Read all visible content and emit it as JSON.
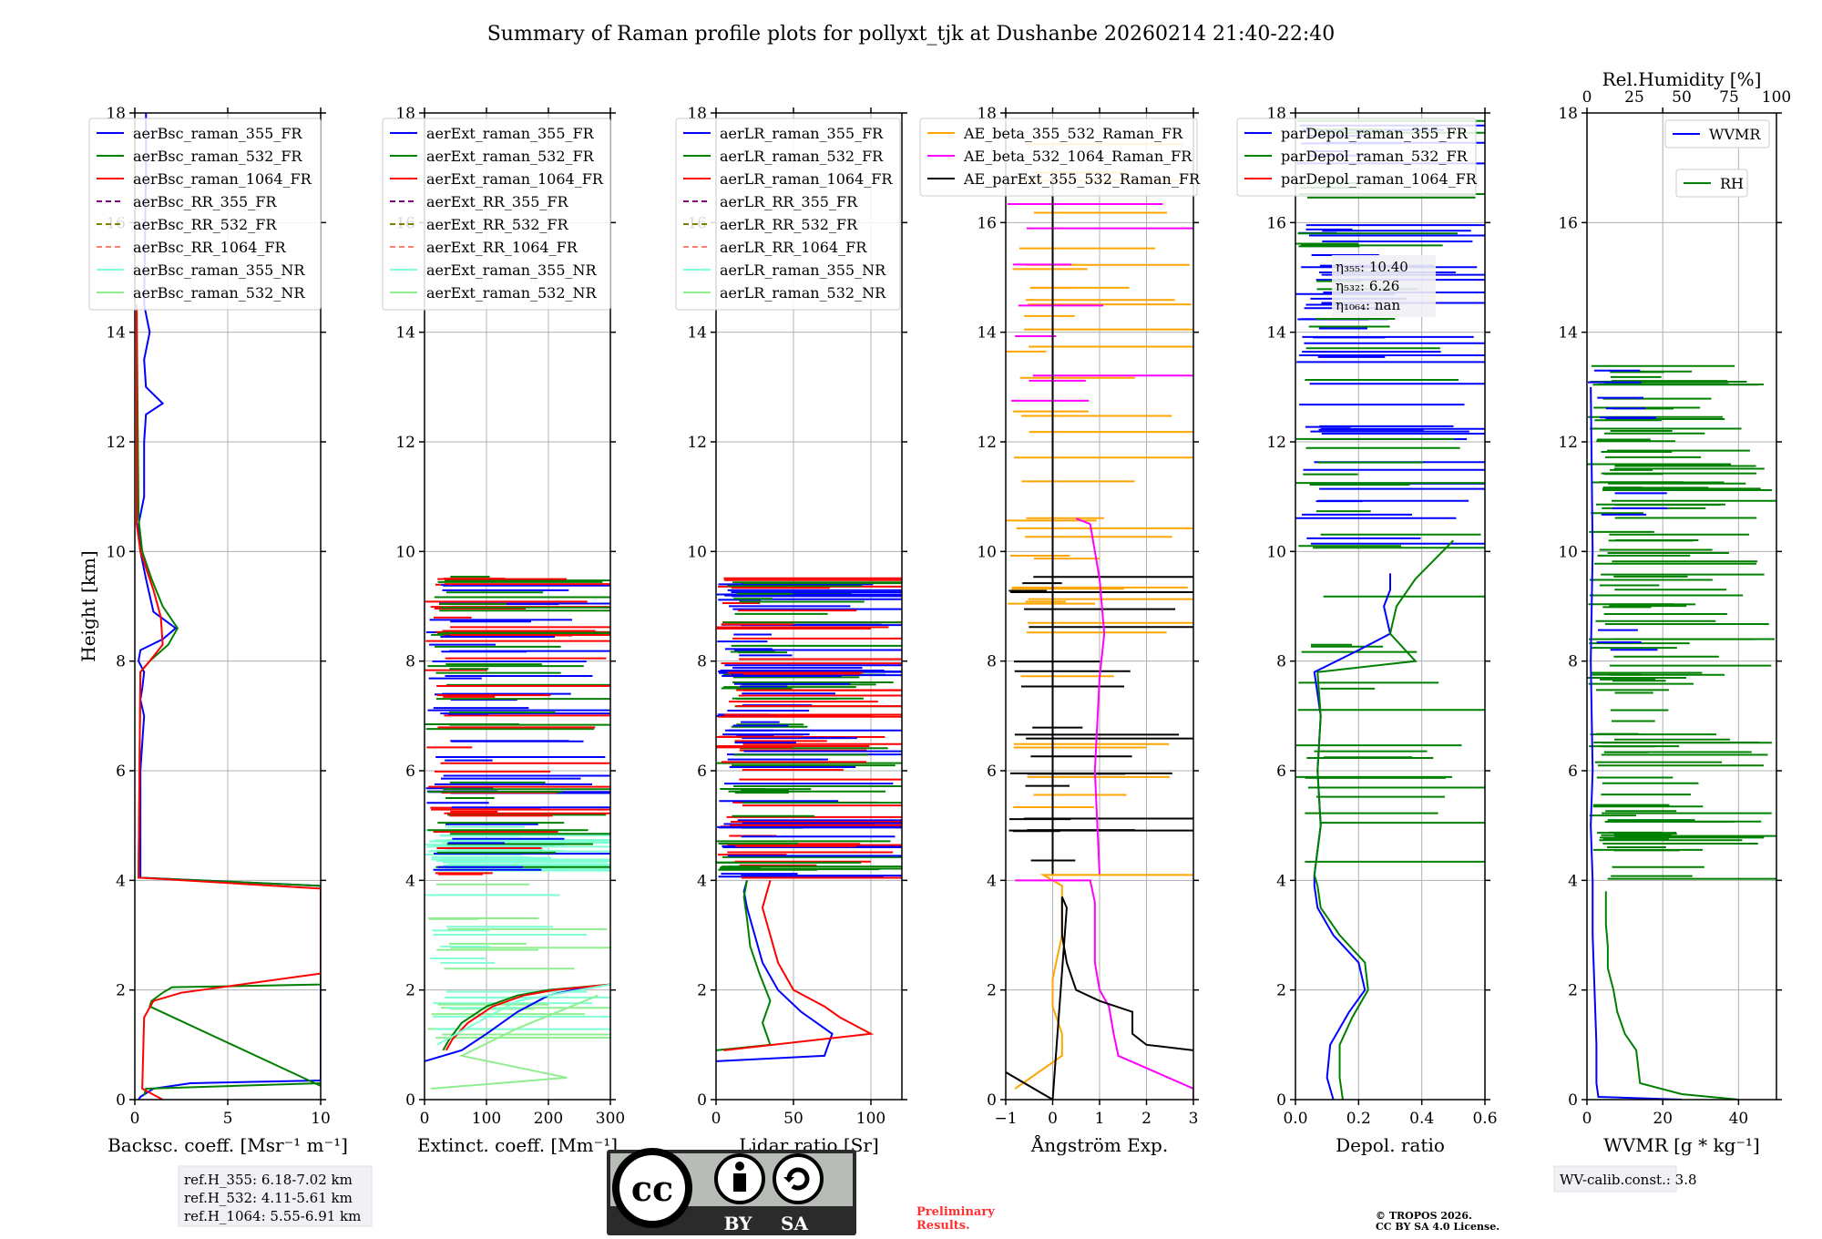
{
  "title": "Summary of Raman profile plots for pollyxt_tjk at Dushanbe 20260214 21:40-22:40",
  "colors": {
    "blue": "#0000ff",
    "green": "#008000",
    "red": "#ff0000",
    "purple": "#800080",
    "olive": "#808000",
    "salmon": "#fa8072",
    "cyan": "#7fffd4",
    "lightgreen": "#90ee90",
    "orange": "#ffa500",
    "magenta": "#ff00ff",
    "black": "#000000",
    "grid": "#b0b0b0"
  },
  "chart_data": [
    {
      "type": "line",
      "id": "bsc",
      "xlabel": "Backsc. coeff. [Msr⁻¹ m⁻¹]",
      "ylabel": "Height [km]",
      "xlim": [
        0,
        10
      ],
      "ylim": [
        0,
        18
      ],
      "xticks": [
        0,
        5,
        10
      ],
      "xticklabels": [
        "0",
        "5",
        "10"
      ],
      "yticks": [
        0,
        2,
        4,
        6,
        8,
        10,
        12,
        14,
        16,
        18
      ],
      "grid": true,
      "legend": "top-left",
      "series": [
        {
          "name": "aerBsc_raman_355_FR",
          "color": "blue",
          "style": "solid",
          "x": [
            0.2,
            0.3,
            1.0,
            3.0,
            10.0,
            10.0,
            0.3,
            0.3,
            0.5,
            0.3,
            0.4,
            0.5,
            0.2,
            0.3,
            1.5,
            2.2,
            1.0,
            0.6,
            0.3,
            0.2,
            0.5,
            0.5,
            0.6,
            1.5,
            0.6,
            0.5,
            0.8,
            0.5,
            0.6,
            0.6
          ],
          "y": [
            0.0,
            0.05,
            0.2,
            0.3,
            0.35,
            3.9,
            4.05,
            6.0,
            7.0,
            7.3,
            7.5,
            7.8,
            8.0,
            8.2,
            8.4,
            8.6,
            8.9,
            9.5,
            10.0,
            10.5,
            11.0,
            12.0,
            12.5,
            12.7,
            13.0,
            13.5,
            14.0,
            14.5,
            17.0,
            18.0
          ]
        },
        {
          "name": "aerBsc_raman_532_FR",
          "color": "green",
          "style": "solid",
          "x": [
            0.5,
            0.6,
            10.0,
            10.0,
            0.8,
            0.9,
            1.5,
            2.0,
            10.0,
            10.0,
            0.2,
            0.3,
            0.8,
            1.8,
            2.3,
            1.5,
            0.9,
            0.4,
            0.2,
            0.1
          ],
          "y": [
            0.08,
            0.2,
            0.3,
            0.25,
            1.7,
            1.8,
            1.95,
            2.05,
            2.1,
            3.9,
            4.05,
            7.8,
            8.0,
            8.3,
            8.6,
            9.0,
            9.5,
            10.0,
            10.6,
            14.5
          ]
        },
        {
          "name": "aerBsc_raman_1064_FR",
          "color": "red",
          "style": "solid",
          "x": [
            1.5,
            0.4,
            0.5,
            1.0,
            2.5,
            10.0,
            10.0,
            0.2,
            0.3,
            0.8,
            1.5,
            1.4,
            1.0,
            0.3,
            0.1,
            0.1
          ],
          "y": [
            0.0,
            0.2,
            1.5,
            1.8,
            1.95,
            2.3,
            3.85,
            4.05,
            7.8,
            8.0,
            8.3,
            8.8,
            9.3,
            10.0,
            10.5,
            14.5
          ]
        },
        {
          "name": "aerBsc_RR_355_FR",
          "color": "purple",
          "style": "dashed",
          "x": [],
          "y": []
        },
        {
          "name": "aerBsc_RR_532_FR",
          "color": "olive",
          "style": "dashed",
          "x": [],
          "y": []
        },
        {
          "name": "aerBsc_RR_1064_FR",
          "color": "salmon",
          "style": "dashed",
          "x": [],
          "y": []
        },
        {
          "name": "aerBsc_raman_355_NR",
          "color": "cyan",
          "style": "solid",
          "x": [],
          "y": []
        },
        {
          "name": "aerBsc_raman_532_NR",
          "color": "lightgreen",
          "style": "solid",
          "x": [],
          "y": []
        }
      ]
    },
    {
      "type": "line",
      "id": "ext",
      "xlabel": "Extinct. coeff. [Mm⁻¹]",
      "xlim": [
        0,
        300
      ],
      "ylim": [
        0,
        18
      ],
      "xticks": [
        0,
        100,
        200,
        300
      ],
      "xticklabels": [
        "0",
        "100",
        "200",
        "300"
      ],
      "yticks": [
        0,
        2,
        4,
        6,
        8,
        10,
        12,
        14,
        16,
        18
      ],
      "grid": true,
      "legend": "top-left",
      "noise_band": {
        "from_km": 4.1,
        "to_km": 9.6,
        "note": "noisy horizontal spikes"
      },
      "series": [
        {
          "name": "aerExt_raman_355_FR",
          "color": "blue",
          "style": "solid",
          "x": [
            0,
            60,
            100,
            150,
            200,
            260,
            300
          ],
          "y": [
            0.7,
            0.9,
            1.2,
            1.6,
            1.9,
            2.05,
            2.1
          ]
        },
        {
          "name": "aerExt_raman_532_FR",
          "color": "green",
          "style": "solid",
          "x": [
            30,
            40,
            60,
            100,
            150,
            200,
            300
          ],
          "y": [
            0.9,
            1.1,
            1.4,
            1.7,
            1.9,
            2.0,
            2.1
          ]
        },
        {
          "name": "aerExt_raman_1064_FR",
          "color": "red",
          "style": "solid",
          "x": [
            35,
            45,
            70,
            110,
            160,
            210,
            300
          ],
          "y": [
            0.9,
            1.1,
            1.4,
            1.7,
            1.9,
            2.0,
            2.1
          ]
        },
        {
          "name": "aerExt_RR_355_FR",
          "color": "purple",
          "style": "dashed",
          "x": [],
          "y": []
        },
        {
          "name": "aerExt_RR_532_FR",
          "color": "olive",
          "style": "dashed",
          "x": [],
          "y": []
        },
        {
          "name": "aerExt_RR_1064_FR",
          "color": "salmon",
          "style": "dashed",
          "x": [],
          "y": []
        },
        {
          "name": "aerExt_raman_355_NR",
          "color": "cyan",
          "style": "solid",
          "x": [
            20,
            100,
            150,
            250,
            300
          ],
          "y": [
            1.0,
            1.5,
            1.8,
            2.0,
            2.1
          ]
        },
        {
          "name": "aerExt_raman_532_NR",
          "color": "lightgreen",
          "style": "solid",
          "x": [
            10,
            120,
            230,
            60,
            150,
            280
          ],
          "y": [
            0.2,
            0.3,
            0.4,
            0.8,
            1.3,
            1.9
          ]
        }
      ]
    },
    {
      "type": "line",
      "id": "lr",
      "xlabel": "Lidar ratio [Sr]",
      "xlim": [
        0,
        120
      ],
      "ylim": [
        0,
        18
      ],
      "xticks": [
        0,
        50,
        100
      ],
      "xticklabels": [
        "0",
        "50",
        "100"
      ],
      "yticks": [
        0,
        2,
        4,
        6,
        8,
        10,
        12,
        14,
        16,
        18
      ],
      "grid": true,
      "legend": "top-left",
      "noise_band": {
        "from_km": 4.0,
        "to_km": 9.6,
        "note": "dense horizontal spikes"
      },
      "series": [
        {
          "name": "aerLR_raman_355_FR",
          "color": "blue",
          "style": "solid",
          "x": [
            0,
            70,
            75,
            55,
            40,
            30,
            25,
            20,
            18,
            20
          ],
          "y": [
            0.7,
            0.8,
            1.2,
            1.6,
            2.0,
            2.5,
            3.0,
            3.5,
            3.8,
            4.0
          ]
        },
        {
          "name": "aerLR_raman_532_FR",
          "color": "green",
          "style": "solid",
          "x": [
            0,
            35,
            30,
            35,
            28,
            22,
            20,
            18,
            20
          ],
          "y": [
            0.9,
            1.0,
            1.4,
            1.8,
            2.3,
            2.8,
            3.3,
            3.7,
            4.0
          ]
        },
        {
          "name": "aerLR_raman_1064_FR",
          "color": "red",
          "style": "solid",
          "x": [
            5,
            100,
            80,
            70,
            50,
            40,
            35,
            30,
            35
          ],
          "y": [
            0.9,
            1.2,
            1.5,
            1.7,
            2.0,
            2.5,
            3.0,
            3.5,
            4.0
          ]
        },
        {
          "name": "aerLR_RR_355_FR",
          "color": "purple",
          "style": "dashed",
          "x": [],
          "y": []
        },
        {
          "name": "aerLR_RR_532_FR",
          "color": "olive",
          "style": "dashed",
          "x": [],
          "y": []
        },
        {
          "name": "aerLR_RR_1064_FR",
          "color": "salmon",
          "style": "dashed",
          "x": [],
          "y": []
        },
        {
          "name": "aerLR_raman_355_NR",
          "color": "cyan",
          "style": "solid",
          "x": [],
          "y": []
        },
        {
          "name": "aerLR_raman_532_NR",
          "color": "lightgreen",
          "style": "solid",
          "x": [],
          "y": []
        }
      ]
    },
    {
      "type": "line",
      "id": "ae",
      "xlabel": "Ångström Exp.",
      "xlim": [
        -1,
        3
      ],
      "ylim": [
        0,
        18
      ],
      "xticks": [
        -1,
        0,
        1,
        2,
        3
      ],
      "xticklabels": [
        "−1",
        "0",
        "1",
        "2",
        "3"
      ],
      "yticks": [
        0,
        2,
        4,
        6,
        8,
        10,
        12,
        14,
        16,
        18
      ],
      "grid": true,
      "legend": "top-right",
      "series": [
        {
          "name": "AE_beta_355_532_Raman_FR",
          "color": "orange",
          "style": "solid",
          "x": [
            -0.8,
            0.2,
            0.2,
            0.0,
            0.0,
            0.2,
            0.2,
            0.2,
            -0.2,
            3.0
          ],
          "y": [
            0.2,
            0.8,
            1.2,
            1.7,
            2.2,
            3.0,
            3.6,
            3.9,
            4.1,
            4.1
          ]
        },
        {
          "name": "AE_beta_532_1064_Raman_FR",
          "color": "magenta",
          "style": "solid",
          "x": [
            -0.8,
            0.8,
            0.9,
            0.9,
            0.9,
            1.0,
            1.2,
            1.3,
            1.4,
            3.0,
            3.0
          ],
          "y": [
            4.0,
            4.0,
            3.6,
            3.0,
            2.5,
            2.0,
            1.7,
            1.2,
            0.8,
            0.2,
            0.0
          ]
        },
        {
          "name": "AE_parExt_355_532_Raman_FR",
          "color": "black",
          "style": "solid",
          "x": [
            -1.0,
            0.0,
            0.3,
            0.2,
            0.2,
            0.3,
            0.5,
            1.0,
            1.7,
            1.7,
            2.0,
            3.0
          ],
          "y": [
            0.5,
            0.0,
            3.5,
            3.7,
            3.0,
            2.5,
            2.0,
            1.8,
            1.6,
            1.2,
            1.0,
            0.9
          ]
        }
      ]
    },
    {
      "type": "line",
      "id": "depol",
      "xlabel": "Depol. ratio",
      "xlim": [
        0,
        0.6
      ],
      "ylim": [
        0,
        18
      ],
      "xticks": [
        0,
        0.2,
        0.4,
        0.6
      ],
      "xticklabels": [
        "0.0",
        "0.2",
        "0.4",
        "0.6"
      ],
      "yticks": [
        0,
        2,
        4,
        6,
        8,
        10,
        12,
        14,
        16,
        18
      ],
      "grid": true,
      "legend": "top-right",
      "annotation": [
        "η₃₅₅: 10.40",
        "η₅₃₂: 6.26",
        "η₁₀₆₄: nan"
      ],
      "series": [
        {
          "name": "parDepol_raman_355_FR",
          "color": "blue",
          "style": "solid",
          "x": [
            0.12,
            0.1,
            0.11,
            0.17,
            0.22,
            0.2,
            0.12,
            0.07,
            0.06,
            0.06,
            0.08,
            0.07,
            0.08,
            0.06,
            0.2,
            0.3,
            0.28,
            0.3,
            0.3
          ],
          "y": [
            0.0,
            0.4,
            1.0,
            1.6,
            2.0,
            2.5,
            3.0,
            3.5,
            3.9,
            4.1,
            5.0,
            6.0,
            7.0,
            7.8,
            8.2,
            8.5,
            9.0,
            9.3,
            9.6
          ]
        },
        {
          "name": "parDepol_raman_532_FR",
          "color": "green",
          "style": "solid",
          "x": [
            0.15,
            0.14,
            0.14,
            0.18,
            0.23,
            0.22,
            0.14,
            0.08,
            0.07,
            0.06,
            0.08,
            0.07,
            0.08,
            0.07,
            0.38,
            0.3,
            0.32,
            0.38,
            0.5
          ],
          "y": [
            0.0,
            0.4,
            1.0,
            1.5,
            2.0,
            2.5,
            3.0,
            3.5,
            3.9,
            4.1,
            5.0,
            6.0,
            7.0,
            7.8,
            8.0,
            8.5,
            9.0,
            9.5,
            10.2
          ]
        },
        {
          "name": "parDepol_raman_1064_FR",
          "color": "red",
          "style": "solid",
          "x": [],
          "y": []
        }
      ]
    },
    {
      "type": "line",
      "id": "wv",
      "xlabel": "WVMR [g * kg⁻¹]",
      "toplabel": "Rel.Humidity [%]",
      "xlim": [
        0,
        50
      ],
      "ylim": [
        0,
        18
      ],
      "xticks": [
        0,
        20,
        40
      ],
      "xticklabels": [
        "0",
        "20",
        "40"
      ],
      "top_xlim": [
        0,
        100
      ],
      "top_xticks": [
        0,
        25,
        50,
        75,
        100
      ],
      "top_xticklabels": [
        "0",
        "25",
        "50",
        "75",
        "100"
      ],
      "yticks": [
        0,
        2,
        4,
        6,
        8,
        10,
        12,
        14,
        16,
        18
      ],
      "grid": true,
      "legend": "top-right",
      "series": [
        {
          "name": "WVMR",
          "color": "blue",
          "style": "solid",
          "x": [
            25,
            3,
            2.5,
            2.5,
            2.0,
            1.5,
            1.5,
            1.0,
            1.5,
            1.0,
            1.5,
            1.0
          ],
          "y": [
            0.0,
            0.05,
            0.3,
            1.0,
            2.0,
            3.0,
            4.0,
            5.0,
            6.0,
            8.0,
            10.0,
            13.0
          ]
        },
        {
          "name": "RH",
          "color": "green",
          "style": "solid",
          "x": [
            80,
            50,
            28,
            26,
            20,
            16,
            14,
            11,
            11,
            10,
            10,
            10
          ],
          "y": [
            0.0,
            0.1,
            0.3,
            0.9,
            1.2,
            1.6,
            2.0,
            2.4,
            2.8,
            3.2,
            3.5,
            3.8
          ]
        }
      ]
    }
  ],
  "info_boxes": {
    "ref_h_355": "ref.H_355: 6.18-7.02 km",
    "ref_h_532": "ref.H_532: 4.11-5.61 km",
    "ref_h_1064": "ref.H_1064: 5.55-6.91 km",
    "wv_calib": "WV-calib.const.: 3.8"
  },
  "license_badge": {
    "by": "BY",
    "sa": "SA",
    "cc": "cc"
  },
  "preliminary": [
    "Preliminary",
    "Results."
  ],
  "copyright": [
    "© TROPOS 2026.",
    "CC BY SA 4.0 License."
  ]
}
